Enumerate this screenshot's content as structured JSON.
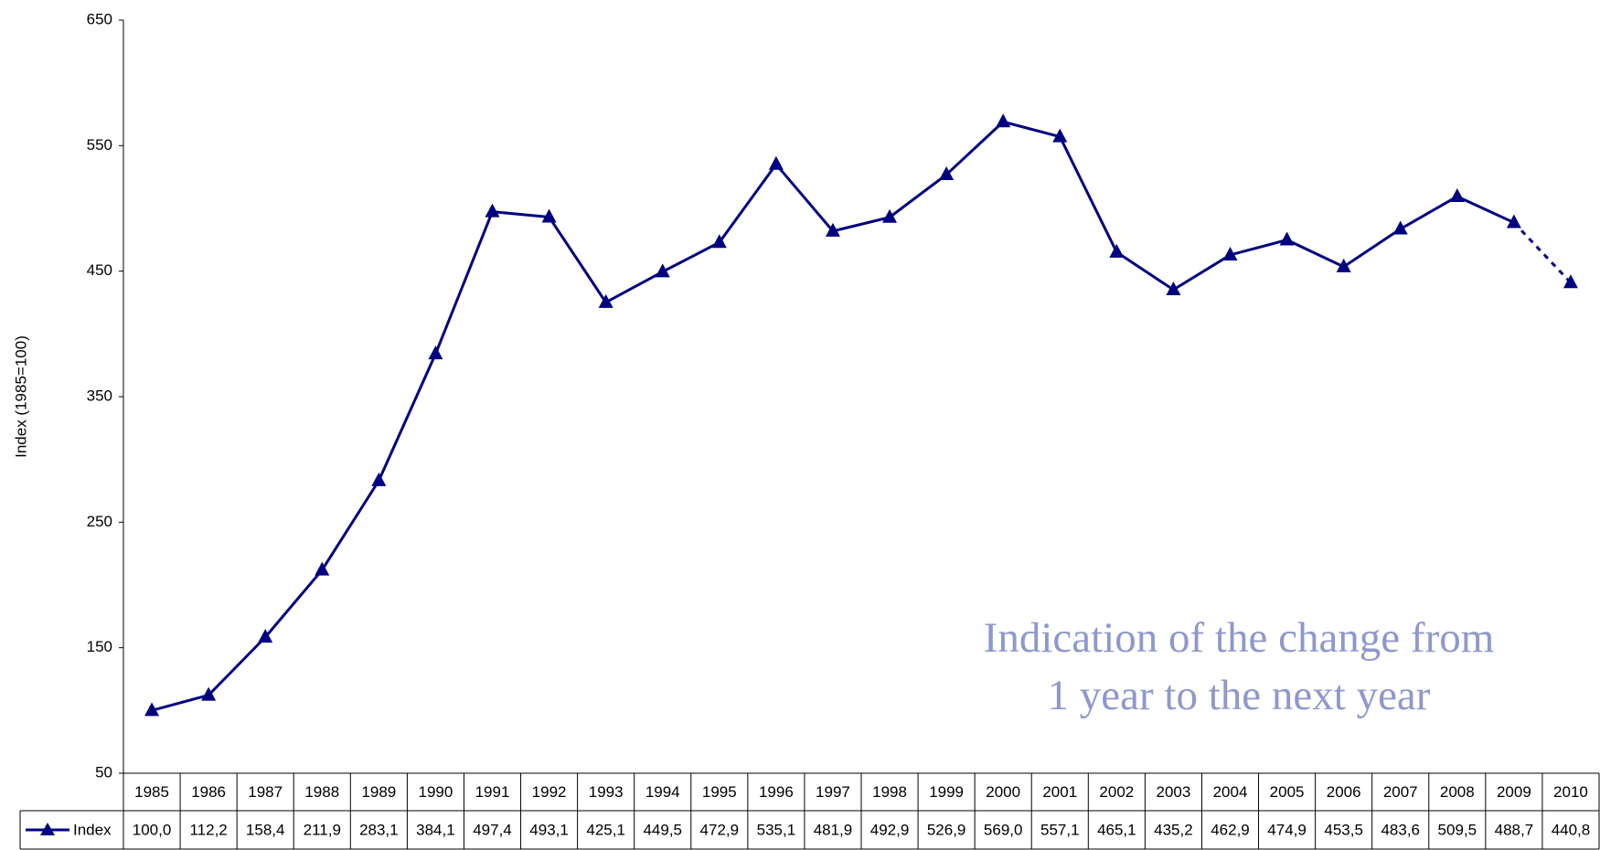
{
  "chart_data": {
    "type": "line",
    "y_label": "Index (1985=100)",
    "annotation": [
      "Indication of the change from",
      "1 year to the next year"
    ],
    "categories": [
      "1985",
      "1986",
      "1987",
      "1988",
      "1989",
      "1990",
      "1991",
      "1992",
      "1993",
      "1994",
      "1995",
      "1996",
      "1997",
      "1998",
      "1999",
      "2000",
      "2001",
      "2002",
      "2003",
      "2004",
      "2005",
      "2006",
      "2007",
      "2008",
      "2009",
      "2010"
    ],
    "series": [
      {
        "name": "Index",
        "color": "#000080",
        "values": [
          100.0,
          112.2,
          158.4,
          211.9,
          283.1,
          384.1,
          497.4,
          493.1,
          425.1,
          449.5,
          472.9,
          535.1,
          481.9,
          492.9,
          526.9,
          569.0,
          557.1,
          465.1,
          435.2,
          462.9,
          474.9,
          453.5,
          483.6,
          509.5,
          488.7,
          440.8
        ],
        "value_labels": [
          "100,0",
          "112,2",
          "158,4",
          "211,9",
          "283,1",
          "384,1",
          "497,4",
          "493,1",
          "425,1",
          "449,5",
          "472,9",
          "535,1",
          "481,9",
          "492,9",
          "526,9",
          "569,0",
          "557,1",
          "465,1",
          "435,2",
          "462,9",
          "474,9",
          "453,5",
          "483,6",
          "509,5",
          "488,7",
          "440,8"
        ]
      }
    ],
    "last_segment_style": "dashed",
    "ylim": [
      50,
      650
    ],
    "yticks": [
      50,
      150,
      250,
      350,
      450,
      550,
      650
    ],
    "grid": false,
    "data_table": true
  }
}
